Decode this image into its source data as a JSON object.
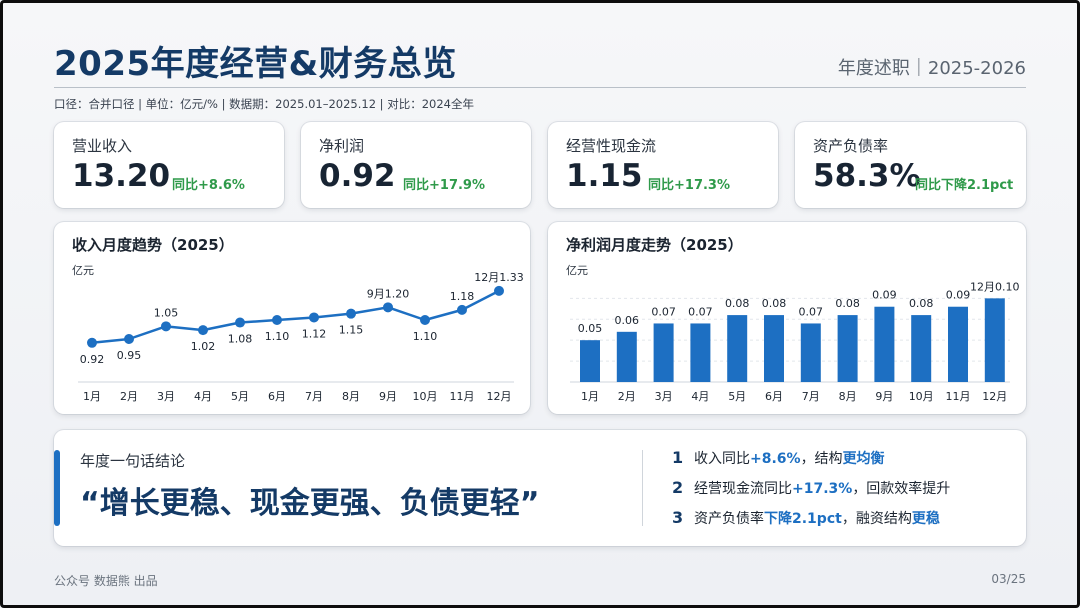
{
  "header": {
    "title": "2025年度经营&财务总览",
    "tagline": "年度述职｜2025-2026",
    "meta": "口径：合并口径 | 单位：亿元/% | 数据期：2025.01–2025.12 | 对比：2024全年"
  },
  "kpis": [
    {
      "label": "营业收入",
      "value": "13.20",
      "delta": "同比+8.6%"
    },
    {
      "label": "净利润",
      "value": "0.92",
      "delta": "同比+17.9%"
    },
    {
      "label": "经营性现金流",
      "value": "1.15",
      "delta": "同比+17.3%"
    },
    {
      "label": "资产负债率",
      "value": "58.3%",
      "delta": "同比下降2.1pct"
    }
  ],
  "chart_data": [
    {
      "type": "line",
      "title": "收入月度趋势（2025）",
      "unit": "亿元",
      "categories": [
        "1月",
        "2月",
        "3月",
        "4月",
        "5月",
        "6月",
        "7月",
        "8月",
        "9月",
        "10月",
        "11月",
        "12月"
      ],
      "values": [
        0.92,
        0.95,
        1.05,
        1.02,
        1.08,
        1.1,
        1.12,
        1.15,
        1.2,
        1.1,
        1.18,
        1.33
      ],
      "labels": [
        "0.92",
        "0.95",
        "1.05",
        "1.02",
        "1.08",
        "1.10",
        "1.12",
        "1.15",
        "9月1.20",
        "1.10",
        "1.18",
        "12月1.33"
      ],
      "color": "#1d6fc2",
      "ylim": [
        0.8,
        1.4
      ]
    },
    {
      "type": "bar",
      "title": "净利润月度走势（2025）",
      "unit": "亿元",
      "categories": [
        "1月",
        "2月",
        "3月",
        "4月",
        "5月",
        "6月",
        "7月",
        "8月",
        "9月",
        "10月",
        "11月",
        "12月"
      ],
      "values": [
        0.05,
        0.06,
        0.07,
        0.07,
        0.08,
        0.08,
        0.07,
        0.08,
        0.09,
        0.08,
        0.09,
        0.1
      ],
      "labels": [
        "0.05",
        "0.06",
        "0.07",
        "0.07",
        "0.08",
        "0.08",
        "0.07",
        "0.08",
        "0.09",
        "0.08",
        "0.09",
        "12月0.10"
      ],
      "color": "#1d6fc2",
      "ylim": [
        0,
        0.11
      ]
    }
  ],
  "conclusion": {
    "title": "年度一句话结论",
    "quote": "“增长更稳、现金更强、负债更轻”",
    "points": [
      {
        "num": "1",
        "parts": [
          {
            "t": "收入同比"
          },
          {
            "t": "+8.6%",
            "hl": true
          },
          {
            "t": "，结构"
          },
          {
            "t": "更均衡",
            "hl": true
          }
        ]
      },
      {
        "num": "2",
        "parts": [
          {
            "t": "经营现金流同比"
          },
          {
            "t": "+17.3%",
            "hl": true
          },
          {
            "t": "，回款效率提升"
          }
        ]
      },
      {
        "num": "3",
        "parts": [
          {
            "t": "资产负债率"
          },
          {
            "t": "下降2.1pct",
            "hl": true
          },
          {
            "t": "，融资结构"
          },
          {
            "t": "更稳",
            "hl": true
          }
        ]
      }
    ]
  },
  "footer": {
    "source": "公众号 数据熊 出品",
    "page": "03/25"
  },
  "colors": {
    "accent": "#1d6fc2",
    "title": "#143a66",
    "positive": "#2f9a4a"
  }
}
